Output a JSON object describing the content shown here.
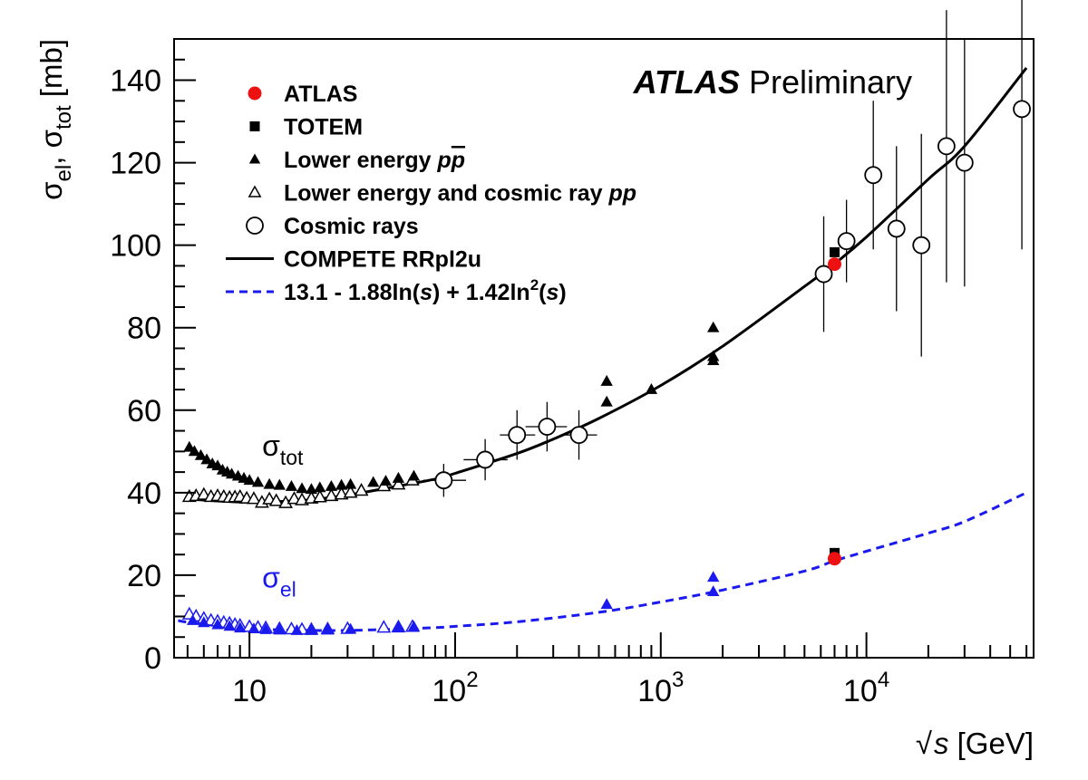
{
  "chart_data": {
    "type": "scatter",
    "title": "",
    "brand": {
      "experiment": "ATLAS",
      "status": "Preliminary"
    },
    "xlabel": {
      "root_symbol": "√",
      "var": "s",
      "unit": " [GeV]"
    },
    "ylabel": {
      "sigma": "σ",
      "sub1": "el",
      "sep": ", ",
      "sub2": "tot",
      "unit": " [mb]"
    },
    "x_scale": "log",
    "xlim": [
      4.3,
      65000
    ],
    "ylim": [
      0,
      150
    ],
    "x_ticks": [
      {
        "value": 10,
        "base": "10",
        "exp": ""
      },
      {
        "value": 100,
        "base": "10",
        "exp": "2"
      },
      {
        "value": 1000,
        "base": "10",
        "exp": "3"
      },
      {
        "value": 10000,
        "base": "10",
        "exp": "4"
      }
    ],
    "y_ticks": [
      0,
      20,
      40,
      60,
      80,
      100,
      120,
      140
    ],
    "grid": false,
    "legend_position": "top-left",
    "legend": [
      {
        "key": "atlas",
        "marker": "circle-filled",
        "color": "#ee1111",
        "parts": [
          {
            "text": "ATLAS"
          }
        ]
      },
      {
        "key": "totem",
        "marker": "square-filled",
        "color": "#000000",
        "parts": [
          {
            "text": "TOTEM"
          }
        ]
      },
      {
        "key": "ppbar",
        "marker": "triangle-filled",
        "color": "#000000",
        "parts": [
          {
            "text": "Lower energy "
          },
          {
            "text": "p",
            "italic": true
          },
          {
            "text": "p",
            "italic": true,
            "overline": true
          }
        ]
      },
      {
        "key": "pp",
        "marker": "triangle-open",
        "color": "#000000",
        "parts": [
          {
            "text": "Lower energy and cosmic ray "
          },
          {
            "text": "pp",
            "italic": true
          }
        ]
      },
      {
        "key": "cosmic",
        "marker": "circle-open",
        "color": "#000000",
        "parts": [
          {
            "text": "Cosmic rays"
          }
        ]
      },
      {
        "key": "compete",
        "marker": "line-solid",
        "color": "#000000",
        "parts": [
          {
            "text": "COMPETE RRpl2u"
          }
        ]
      },
      {
        "key": "fit",
        "marker": "line-dashed",
        "color": "#1a1aee",
        "parts": [
          {
            "text": "13.1 - 1.88ln("
          },
          {
            "text": "s",
            "italic": true
          },
          {
            "text": ") + 1.42ln"
          },
          {
            "text": "2",
            "sup": true
          },
          {
            "text": "("
          },
          {
            "text": "s",
            "italic": true
          },
          {
            "text": ")"
          }
        ]
      }
    ],
    "curve_labels": [
      {
        "key": "tot",
        "sigma": "σ",
        "sub": "tot",
        "color": "#000000",
        "x": 12,
        "y": 49
      },
      {
        "key": "el",
        "sigma": "σ",
        "sub": "el",
        "color": "#1a1aee",
        "x": 12,
        "y": 17
      }
    ],
    "curves": [
      {
        "name": "COMPETE RRpl2u",
        "color": "#000000",
        "style": "solid",
        "x": [
          5,
          7,
          10,
          15,
          20,
          30,
          50,
          80,
          100,
          200,
          300,
          500,
          1000,
          2000,
          5000,
          7000,
          10000,
          20000,
          30000,
          60000
        ],
        "y": [
          38.5,
          38.0,
          37.7,
          37.9,
          38.3,
          39.4,
          41.4,
          43.3,
          44.7,
          49.5,
          53.0,
          58.0,
          66.0,
          75.5,
          90.0,
          95.5,
          102.0,
          116.0,
          124.0,
          143.0
        ]
      },
      {
        "name": "13.1 - 1.88ln(s) + 1.42ln2(s)",
        "color": "#1a1aee",
        "style": "dashed",
        "x": [
          4.5,
          5,
          7,
          10,
          15,
          20,
          30,
          50,
          80,
          100,
          200,
          500,
          1000,
          2000,
          5000,
          7000,
          10000,
          20000,
          30000,
          60000
        ],
        "y": [
          9.0,
          8.6,
          7.8,
          7.1,
          6.7,
          6.6,
          6.6,
          6.9,
          7.3,
          7.6,
          8.7,
          11.0,
          13.5,
          16.4,
          21.0,
          23.5,
          25.8,
          30.2,
          33.0,
          40.0
        ]
      }
    ],
    "series": [
      {
        "name": "Cosmic rays",
        "marker": "circle-open",
        "color": "#000000",
        "x": [
          88,
          140,
          200,
          280,
          400,
          6200,
          8000,
          10800,
          14000,
          18500,
          24500,
          30000,
          57000
        ],
        "y": [
          43,
          48,
          54,
          56,
          54,
          93,
          101,
          117,
          104,
          100,
          124,
          120,
          133
        ],
        "yerr": [
          4,
          5,
          6,
          6,
          6,
          14,
          10,
          18,
          20,
          27,
          33,
          30,
          34
        ],
        "xerr_low": [
          18,
          30,
          35,
          60,
          75,
          500,
          600,
          800,
          1000,
          1500,
          2000,
          2500,
          2000
        ],
        "xerr_high": [
          25,
          40,
          45,
          70,
          90,
          500,
          600,
          800,
          1000,
          1500,
          2000,
          2500,
          2000
        ]
      },
      {
        "name": "Lower energy and cosmic ray pp",
        "marker": "triangle-open",
        "color": "#000000",
        "x": [
          5.1,
          5.5,
          6.0,
          6.5,
          7.0,
          7.5,
          8.0,
          8.5,
          9.0,
          9.7,
          10.5,
          11.5,
          12.5,
          13.5,
          15.0,
          16.5,
          18.0,
          20.0,
          22.0,
          25.0,
          28.0,
          31.0,
          35.0,
          45.0,
          53.0,
          62.0
        ],
        "y": [
          39.0,
          39.2,
          39.5,
          39.0,
          39.2,
          39.0,
          38.8,
          38.9,
          39.0,
          38.6,
          38.5,
          37.6,
          38.4,
          38.0,
          37.5,
          38.5,
          38.2,
          38.6,
          38.9,
          39.2,
          39.6,
          40.0,
          40.5,
          41.6,
          42.0,
          43.0
        ]
      },
      {
        "name": "Lower energy ppbar",
        "marker": "triangle-filled",
        "color": "#000000",
        "x": [
          5.1,
          5.4,
          5.8,
          6.2,
          6.6,
          7.0,
          7.4,
          7.8,
          8.2,
          8.8,
          9.4,
          10.0,
          11.0,
          12.5,
          14.0,
          16.0,
          18.0,
          20.0,
          22.0,
          25.0,
          28.0,
          31.0,
          40.0,
          46.0,
          53.0,
          63.0,
          546.0,
          546.0,
          900.0,
          1800.0,
          1800.0,
          1800.0
        ],
        "y": [
          51.0,
          50.0,
          49.0,
          48.0,
          47.0,
          46.5,
          45.5,
          45.0,
          44.5,
          44.0,
          43.5,
          43.0,
          42.5,
          42.0,
          41.8,
          41.5,
          41.0,
          40.8,
          41.2,
          41.5,
          41.8,
          42.0,
          42.5,
          42.8,
          43.5,
          44.0,
          62.0,
          67.0,
          65.0,
          72.0,
          80.0,
          73.0
        ]
      },
      {
        "name": "TOTEM",
        "marker": "square-filled",
        "color": "#000000",
        "x": [
          7000
        ],
        "y": [
          98.3
        ]
      },
      {
        "name": "ATLAS",
        "marker": "circle-filled",
        "color": "#ee1111",
        "x": [
          7000
        ],
        "y": [
          95.4
        ]
      },
      {
        "name": "Elastic pp (lower energy)",
        "marker": "triangle-open",
        "color": "#1a1aee",
        "x": [
          5.1,
          5.5,
          6.0,
          6.5,
          7.0,
          7.5,
          8.0,
          8.5,
          9.0,
          10.0,
          11.0,
          12.0,
          14.0,
          16.0,
          18.0,
          20.0,
          24.0,
          30.0,
          45.0,
          53.0,
          62.0
        ],
        "y": [
          10.5,
          10.0,
          9.5,
          9.0,
          8.8,
          8.5,
          8.3,
          8.0,
          7.8,
          7.5,
          7.3,
          7.2,
          7.0,
          6.9,
          6.8,
          6.8,
          6.9,
          7.0,
          7.3,
          7.4,
          7.5
        ]
      },
      {
        "name": "Elastic ppbar (lower energy)",
        "marker": "triangle-filled",
        "color": "#1a1aee",
        "x": [
          5.3,
          6.0,
          7.0,
          8.0,
          9.0,
          10.5,
          12.0,
          14.0,
          17.0,
          20.0,
          24.0,
          31.0,
          53.0,
          63.0,
          546.0,
          1800.0,
          1800.0
        ],
        "y": [
          9.0,
          8.5,
          8.0,
          7.6,
          7.2,
          7.0,
          6.8,
          6.7,
          6.6,
          6.6,
          6.7,
          6.9,
          7.2,
          7.5,
          12.9,
          19.5,
          16.0
        ]
      },
      {
        "name": "TOTEM elastic",
        "marker": "square-filled",
        "color": "#000000",
        "x": [
          7000
        ],
        "y": [
          25.4
        ]
      },
      {
        "name": "ATLAS elastic",
        "marker": "circle-filled",
        "color": "#ee1111",
        "x": [
          7000
        ],
        "y": [
          24.0
        ]
      }
    ]
  }
}
